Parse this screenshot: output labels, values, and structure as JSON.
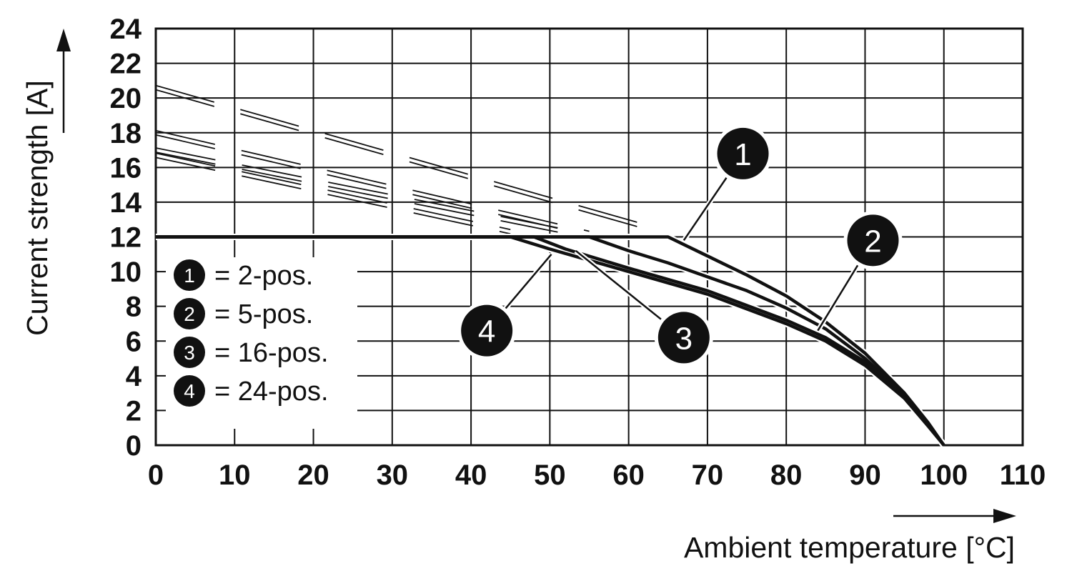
{
  "chart_data": {
    "type": "line",
    "xlabel": "Ambient temperature [°C]",
    "ylabel": "Current strength [A]",
    "xlim": [
      0,
      110
    ],
    "ylim": [
      0,
      24
    ],
    "x_ticks": [
      0,
      10,
      20,
      30,
      40,
      50,
      60,
      70,
      80,
      90,
      100,
      110
    ],
    "y_ticks": [
      0,
      2,
      4,
      6,
      8,
      10,
      12,
      14,
      16,
      18,
      20,
      22,
      24
    ],
    "grid": true,
    "legend_position": "bottom-left",
    "legend": [
      {
        "marker": "1",
        "text": "= 2-pos."
      },
      {
        "marker": "2",
        "text": "= 5-pos."
      },
      {
        "marker": "3",
        "text": "= 16-pos."
      },
      {
        "marker": "4",
        "text": "= 24-pos."
      }
    ],
    "series": [
      {
        "marker": "1",
        "dashed_from": [
          [
            0,
            20.6
          ],
          [
            62,
            12.6
          ]
        ],
        "points": [
          [
            0,
            12
          ],
          [
            65,
            12
          ],
          [
            70,
            10.9
          ],
          [
            75,
            9.8
          ],
          [
            80,
            8.6
          ],
          [
            85,
            7.1
          ],
          [
            90,
            5.3
          ],
          [
            95,
            3.0
          ],
          [
            98,
            1.3
          ],
          [
            100,
            0
          ]
        ]
      },
      {
        "marker": "2",
        "dashed_from": [
          [
            0,
            18.0
          ],
          [
            55,
            12.2
          ]
        ],
        "points": [
          [
            0,
            12
          ],
          [
            55,
            12
          ],
          [
            60,
            11.2
          ],
          [
            65,
            10.5
          ],
          [
            70,
            9.7
          ],
          [
            75,
            8.9
          ],
          [
            80,
            7.9
          ],
          [
            85,
            6.7
          ],
          [
            90,
            5.0
          ],
          [
            95,
            2.9
          ],
          [
            98,
            1.2
          ],
          [
            100,
            0
          ]
        ]
      },
      {
        "marker": "3",
        "dashed_from": [
          [
            0,
            17.0
          ],
          [
            51,
            12.4
          ]
        ],
        "points": [
          [
            0,
            12
          ],
          [
            48,
            12
          ],
          [
            52,
            11.3
          ],
          [
            60,
            10.2
          ],
          [
            70,
            8.9
          ],
          [
            80,
            7.2
          ],
          [
            85,
            6.2
          ],
          [
            90,
            4.8
          ],
          [
            95,
            2.8
          ],
          [
            98,
            1.2
          ],
          [
            100,
            0
          ]
        ]
      },
      {
        "marker": "4",
        "dashed_from": [
          [
            0,
            16.7
          ],
          [
            45,
            12.3
          ]
        ],
        "points": [
          [
            0,
            12
          ],
          [
            45,
            12
          ],
          [
            50,
            11.3
          ],
          [
            60,
            10.0
          ],
          [
            70,
            8.7
          ],
          [
            80,
            7.0
          ],
          [
            85,
            6.0
          ],
          [
            90,
            4.6
          ],
          [
            95,
            2.7
          ],
          [
            98,
            1.1
          ],
          [
            100,
            0
          ]
        ]
      }
    ],
    "callouts": [
      {
        "marker": "1",
        "label_at": [
          74.5,
          16.8
        ],
        "pointer_to": [
          67,
          11.8
        ]
      },
      {
        "marker": "2",
        "label_at": [
          91,
          11.8
        ],
        "pointer_to": [
          84,
          6.6
        ]
      },
      {
        "marker": "3",
        "label_at": [
          67,
          6.2
        ],
        "pointer_to": [
          53.3,
          11.2
        ]
      },
      {
        "marker": "4",
        "label_at": [
          42,
          6.6
        ],
        "pointer_to": [
          50.2,
          11.0
        ]
      }
    ]
  }
}
